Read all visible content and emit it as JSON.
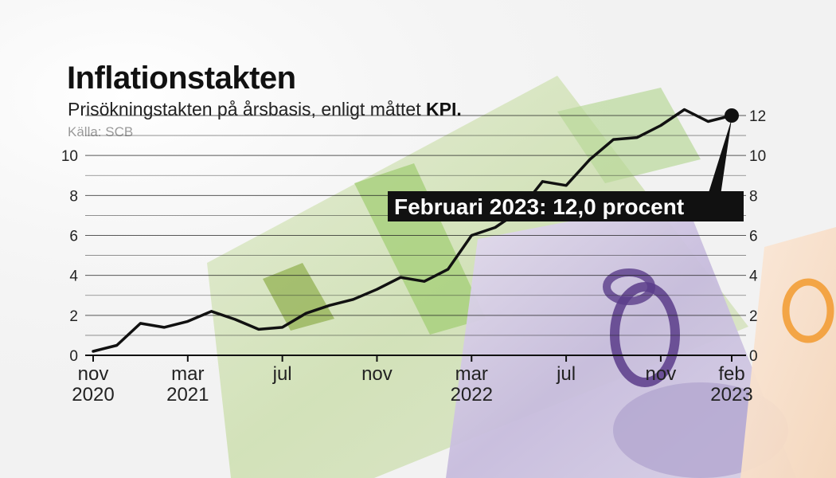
{
  "header": {
    "title": "Inflationstakten",
    "subtitle_prefix": "Prisökningstakten på årsbasis, enligt måttet ",
    "subtitle_emphasis": "KPI.",
    "source": "Källa: SCB"
  },
  "annotation": {
    "text": "Februari 2023: 12,0 procent",
    "point_x": 27,
    "point_y": 12.0
  },
  "chart_data": {
    "type": "line",
    "title": "Inflationstakten",
    "subtitle": "Prisökningstakten på årsbasis, enligt måttet KPI.",
    "xlabel": "",
    "ylabel": "",
    "ylim": [
      0,
      12
    ],
    "xlim": [
      0,
      27
    ],
    "grid": true,
    "y_ticks": [
      0,
      2,
      4,
      6,
      8,
      10,
      12
    ],
    "x_ticks": [
      {
        "x": 0,
        "line1": "nov",
        "line2": "2020"
      },
      {
        "x": 4,
        "line1": "mar",
        "line2": "2021"
      },
      {
        "x": 8,
        "line1": "jul",
        "line2": ""
      },
      {
        "x": 12,
        "line1": "nov",
        "line2": ""
      },
      {
        "x": 16,
        "line1": "mar",
        "line2": "2022"
      },
      {
        "x": 20,
        "line1": "jul",
        "line2": ""
      },
      {
        "x": 24,
        "line1": "nov",
        "line2": ""
      },
      {
        "x": 27,
        "line1": "feb",
        "line2": "2023"
      }
    ],
    "series": [
      {
        "x": [
          0,
          1,
          2,
          3,
          4,
          5,
          6,
          7,
          8,
          9,
          10,
          11,
          12,
          13,
          14,
          15,
          16,
          17,
          18,
          19,
          20,
          21,
          22,
          23,
          24,
          25,
          26,
          27
        ],
        "values": [
          0.2,
          0.5,
          1.6,
          1.4,
          1.7,
          2.2,
          1.8,
          1.3,
          1.4,
          2.1,
          2.5,
          2.8,
          3.3,
          3.9,
          3.7,
          4.3,
          6.0,
          6.4,
          7.2,
          8.7,
          8.5,
          9.8,
          10.8,
          10.9,
          11.5,
          12.3,
          11.7,
          12.0
        ]
      }
    ],
    "colors": {
      "line": "#111111"
    }
  }
}
